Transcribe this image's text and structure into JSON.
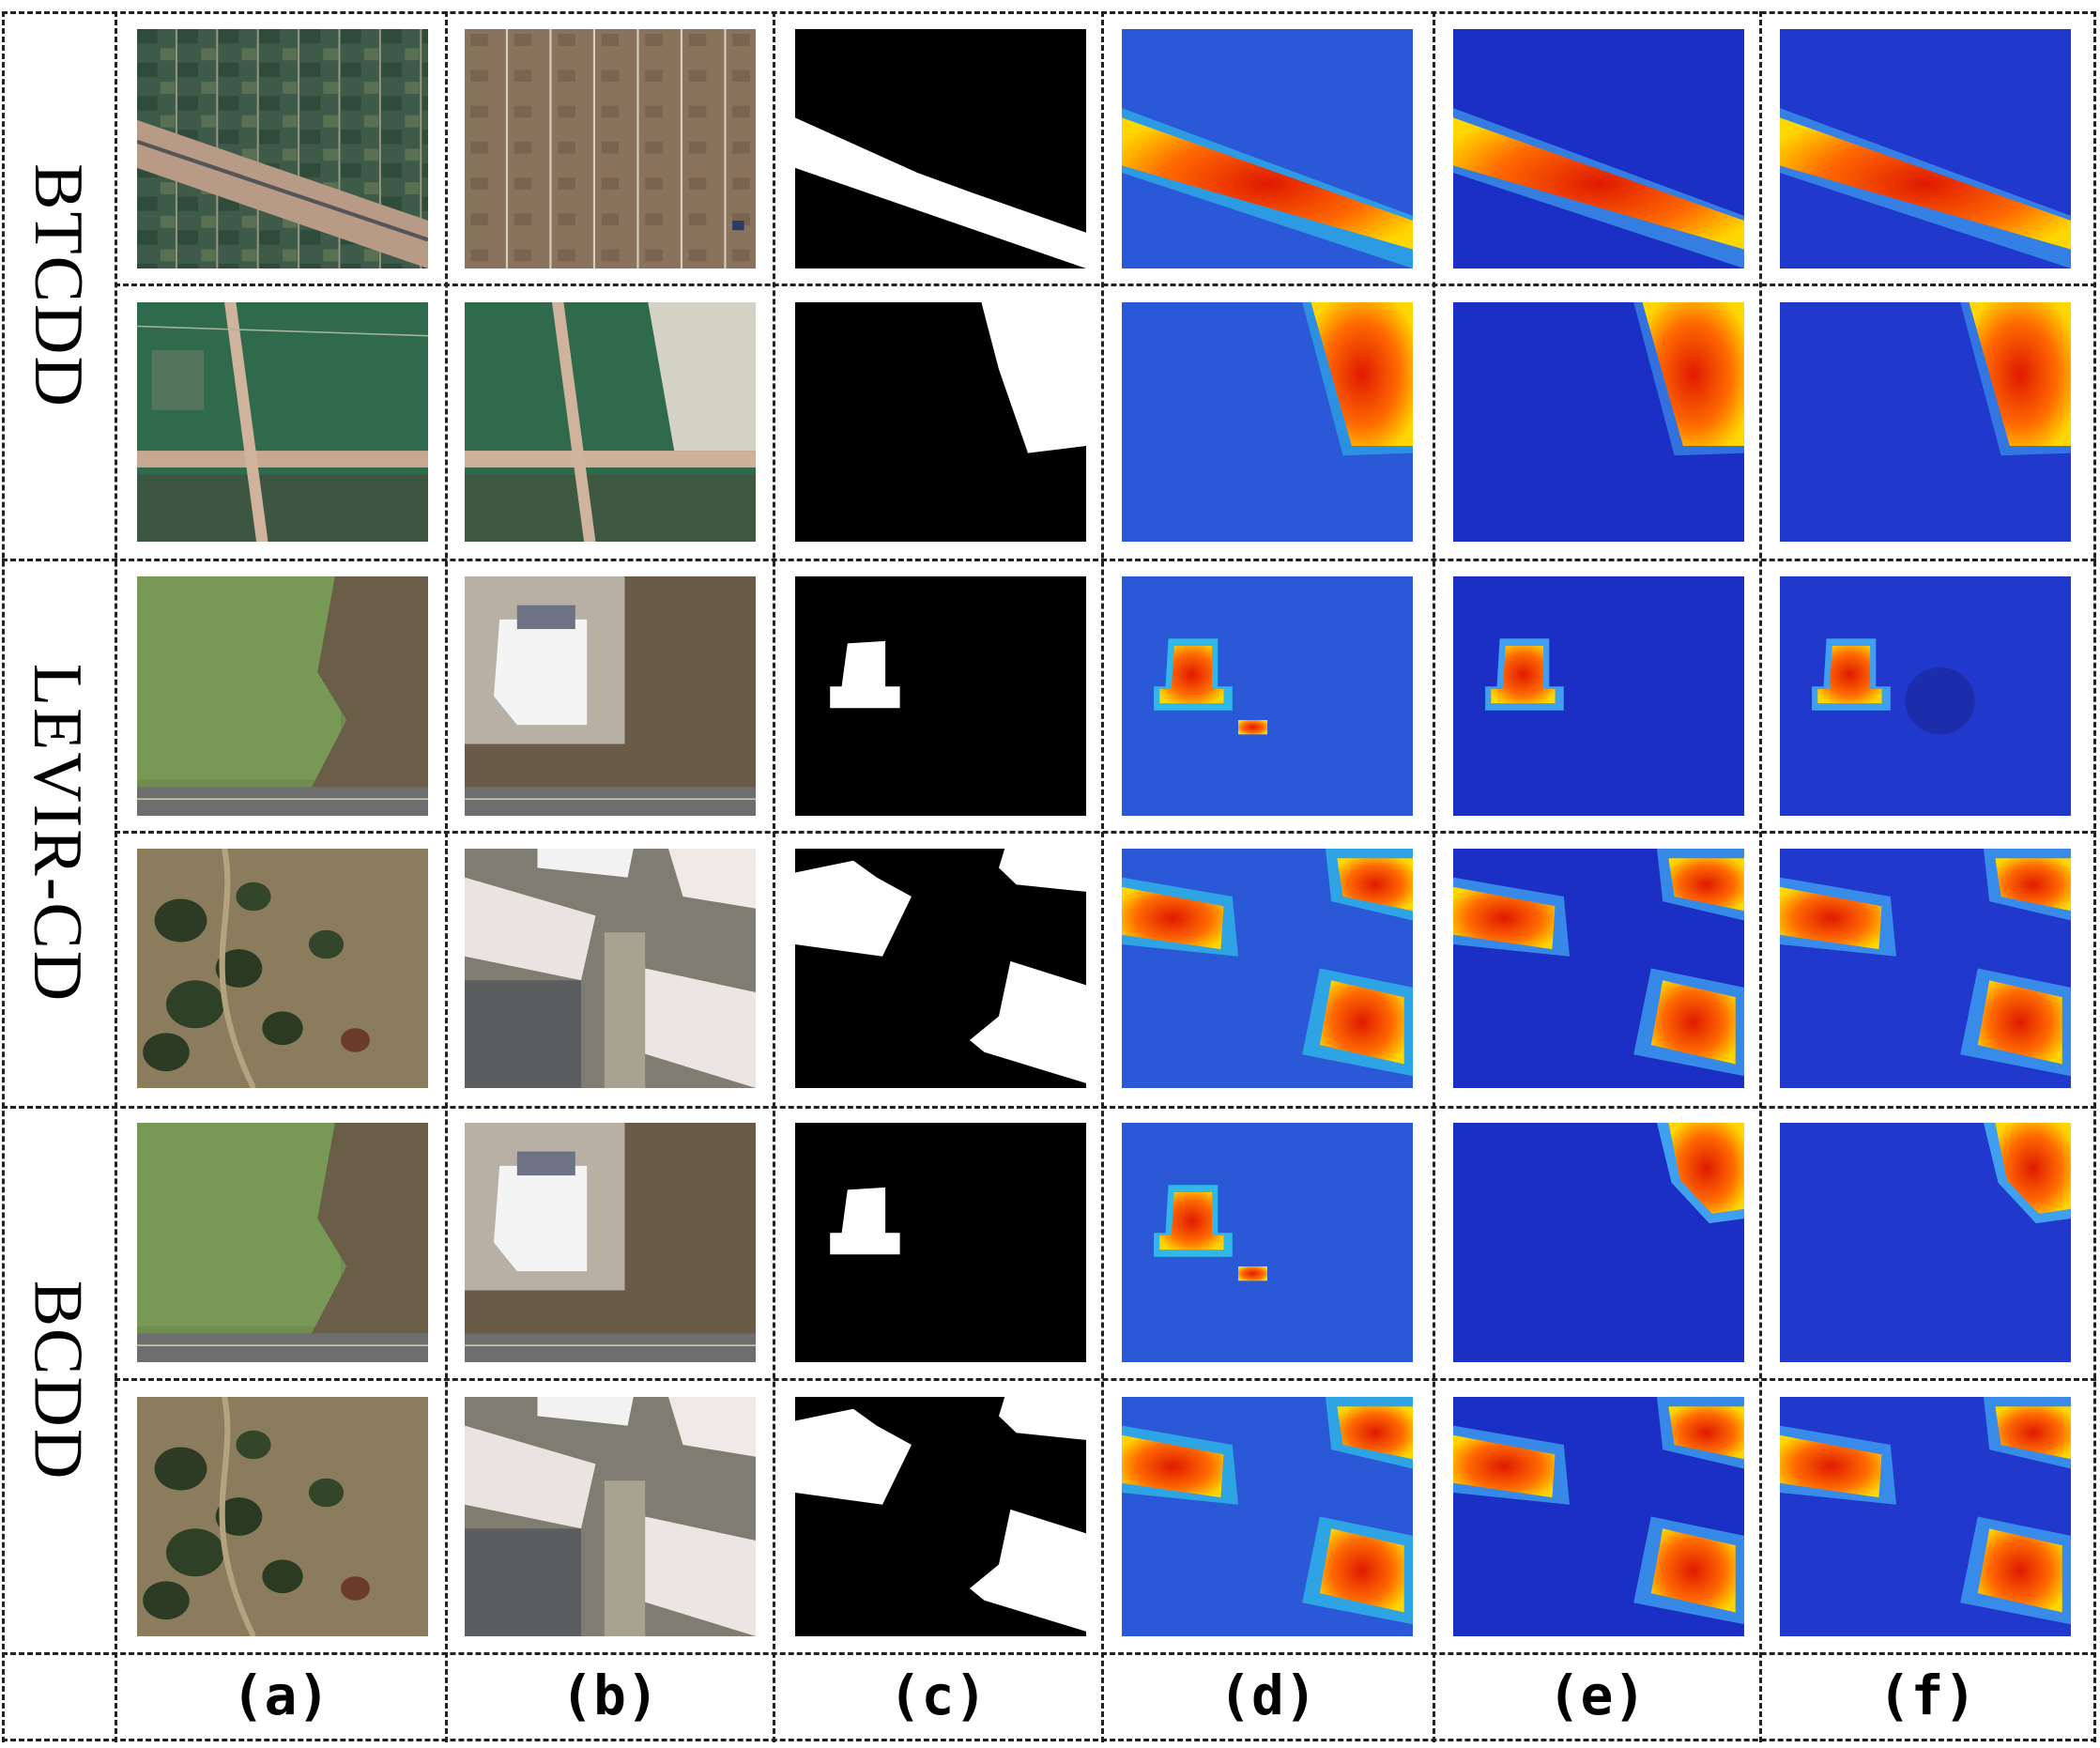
{
  "datasets": [
    {
      "label": "BTCDD",
      "rows": 2
    },
    {
      "label": "LEVIR-CD",
      "rows": 2
    },
    {
      "label": "BCDD",
      "rows": 2
    }
  ],
  "columns": [
    {
      "label": "(a)",
      "content": "pre-change image"
    },
    {
      "label": "(b)",
      "content": "post-change image"
    },
    {
      "label": "(c)",
      "content": "ground-truth change mask"
    },
    {
      "label": "(d)",
      "content": "heatmap"
    },
    {
      "label": "(e)",
      "content": "heatmap"
    },
    {
      "label": "(f)",
      "content": "heatmap"
    }
  ],
  "colors": {
    "heat_low": "#1f3fd0",
    "heat_mid": "#2fb8e8",
    "heat_high": "#ff6a00",
    "heat_peak": "#e01a00",
    "mask_change": "#ffffff",
    "mask_bg": "#000000"
  }
}
